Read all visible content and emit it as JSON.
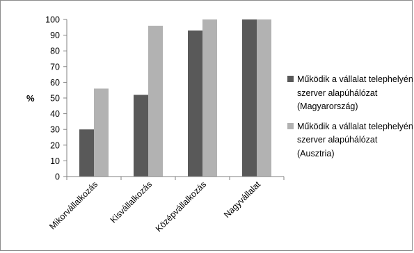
{
  "chart_data": {
    "type": "bar",
    "categories": [
      "Mikorvállalkozás",
      "Kisvállalkozás",
      "Középvállalkozás",
      "Nagyvállalat"
    ],
    "series": [
      {
        "name": "Működik a vállalat telephelyén szerver alapúhálózat (Magyarország)",
        "color": "#595959",
        "values": [
          30,
          52,
          93,
          100
        ]
      },
      {
        "name": "Működik a vállalat telephelyén szerver alapúhálózat (Ausztria)",
        "color": "#b2b2b2",
        "values": [
          56,
          96,
          100,
          100
        ]
      }
    ],
    "ylabel": "%",
    "xlabel": "",
    "title": "",
    "ylim": [
      0,
      100
    ],
    "ytick_step": 10,
    "yticks": [
      "0",
      "10",
      "20",
      "30",
      "40",
      "50",
      "60",
      "70",
      "80",
      "90",
      "100"
    ],
    "grid": false,
    "legend_position": "right"
  }
}
